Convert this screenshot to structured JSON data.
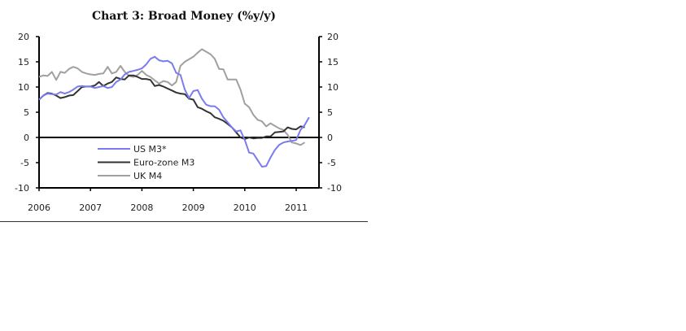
{
  "chart_data": {
    "type": "line",
    "title": "Chart 3: Broad Money (%y/y)",
    "xlabel": "",
    "ylabel": "",
    "ylim": [
      -10,
      20
    ],
    "yticks": [
      -10,
      -5,
      0,
      5,
      10,
      15,
      20
    ],
    "xtick_labels": [
      "2006",
      "2007",
      "2008",
      "2009",
      "2010",
      "2011"
    ],
    "grid": false,
    "legend_placement": "center-bottom",
    "x": [
      "2006-01",
      "2006-02",
      "2006-03",
      "2006-04",
      "2006-05",
      "2006-06",
      "2006-07",
      "2006-08",
      "2006-09",
      "2006-10",
      "2006-11",
      "2006-12",
      "2007-01",
      "2007-02",
      "2007-03",
      "2007-04",
      "2007-05",
      "2007-06",
      "2007-07",
      "2007-08",
      "2007-09",
      "2007-10",
      "2007-11",
      "2007-12",
      "2008-01",
      "2008-02",
      "2008-03",
      "2008-04",
      "2008-05",
      "2008-06",
      "2008-07",
      "2008-08",
      "2008-09",
      "2008-10",
      "2008-11",
      "2008-12",
      "2009-01",
      "2009-02",
      "2009-03",
      "2009-04",
      "2009-05",
      "2009-06",
      "2009-07",
      "2009-08",
      "2009-09",
      "2009-10",
      "2009-11",
      "2009-12",
      "2010-01",
      "2010-02",
      "2010-03",
      "2010-04",
      "2010-05",
      "2010-06",
      "2010-07",
      "2010-08",
      "2010-09",
      "2010-10",
      "2010-11",
      "2010-12",
      "2011-01",
      "2011-02",
      "2011-03",
      "2011-04"
    ],
    "series": [
      {
        "name": "US M3*",
        "color": "#7b7bf0",
        "values": [
          7.5,
          8.3,
          8.7,
          8.6,
          8.5,
          9.0,
          8.7,
          9.0,
          9.5,
          10.1,
          10.2,
          10.1,
          10.1,
          9.8,
          10.0,
          10.2,
          9.8,
          10.0,
          11.0,
          11.5,
          12.5,
          13.0,
          13.2,
          13.4,
          13.7,
          14.5,
          15.6,
          16.0,
          15.3,
          15.1,
          15.2,
          14.7,
          12.8,
          12.4,
          9.5,
          7.8,
          9.2,
          9.4,
          7.7,
          6.5,
          6.2,
          6.2,
          5.5,
          4.0,
          3.0,
          2.0,
          1.2,
          1.4,
          -0.5,
          -3.0,
          -3.2,
          -4.5,
          -5.8,
          -5.7,
          -4.0,
          -2.5,
          -1.5,
          -1.0,
          -0.8,
          -0.7,
          -0.5,
          1.5,
          2.5,
          4.0
        ]
      },
      {
        "name": "Euro-zone M3",
        "color": "#333333",
        "values": [
          7.5,
          8.3,
          8.8,
          8.7,
          8.3,
          7.8,
          8.0,
          8.3,
          8.4,
          9.2,
          10.0,
          10.1,
          10.1,
          10.3,
          11.0,
          10.2,
          10.7,
          11.0,
          11.9,
          11.6,
          11.5,
          12.3,
          12.3,
          12.0,
          11.6,
          11.6,
          11.4,
          10.2,
          10.4,
          10.1,
          9.7,
          9.3,
          8.9,
          8.7,
          8.6,
          7.7,
          7.5,
          6.0,
          5.7,
          5.2,
          4.8,
          4.0,
          3.7,
          3.3,
          2.7,
          2.0,
          1.0,
          0.0,
          -0.3,
          0.0,
          -0.2,
          -0.1,
          -0.1,
          0.2,
          0.2,
          1.0,
          1.1,
          1.2,
          2.0,
          1.7,
          1.6,
          2.2,
          2.0,
          null
        ]
      },
      {
        "name": "UK M4",
        "color": "#a0a0a0",
        "values": [
          12.0,
          12.3,
          12.2,
          13.0,
          11.4,
          13.0,
          12.8,
          13.6,
          14.0,
          13.7,
          13.0,
          12.7,
          12.5,
          12.4,
          12.6,
          12.7,
          14.0,
          12.7,
          13.0,
          14.2,
          13.0,
          12.2,
          12.0,
          12.4,
          13.2,
          12.4,
          12.0,
          11.3,
          10.7,
          11.2,
          11.0,
          10.3,
          11.0,
          14.2,
          15.0,
          15.5,
          16.0,
          16.8,
          17.5,
          17.0,
          16.5,
          15.6,
          13.6,
          13.5,
          11.5,
          11.5,
          11.5,
          9.5,
          6.7,
          6.0,
          4.5,
          3.5,
          3.2,
          2.2,
          2.8,
          2.3,
          1.8,
          1.5,
          0.5,
          -1.0,
          -1.2,
          -1.5,
          -1.0,
          null
        ]
      }
    ]
  }
}
